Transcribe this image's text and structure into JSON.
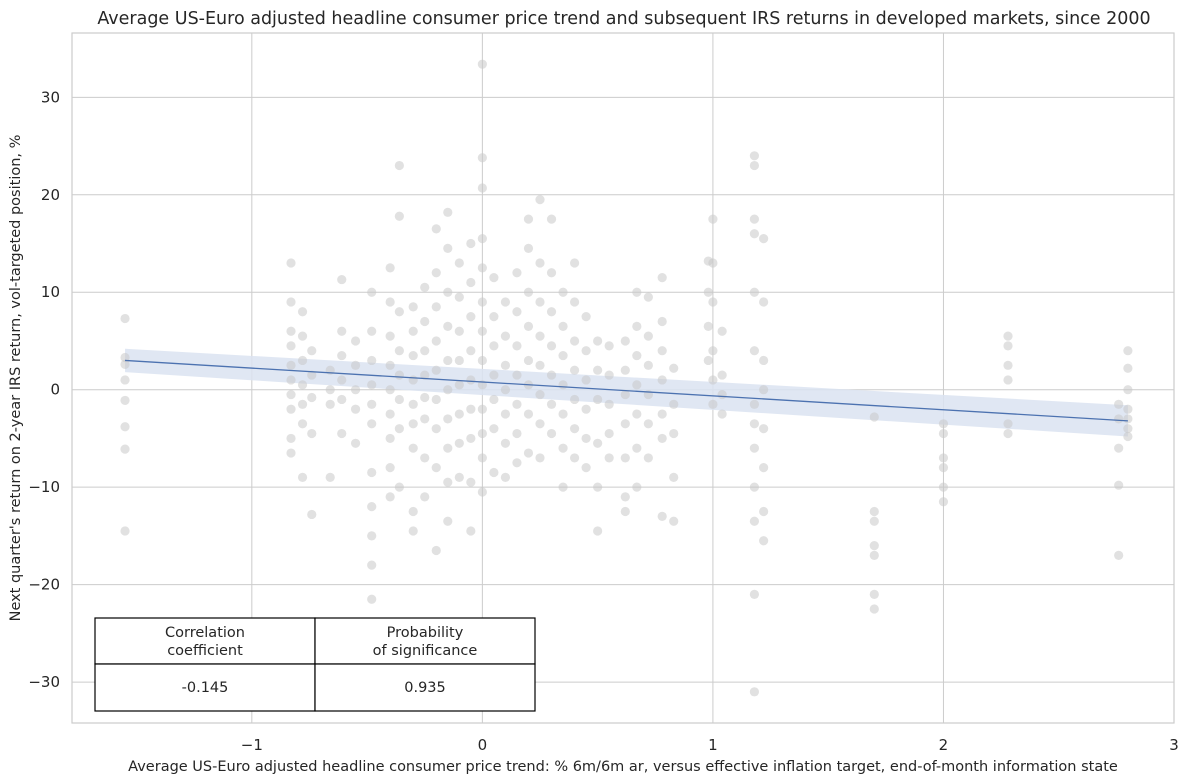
{
  "chart_data": {
    "type": "scatter",
    "title": "Average US-Euro adjusted headline consumer price trend and subsequent IRS returns in developed markets, since 2000",
    "xlabel": "Average US-Euro adjusted headline consumer price trend: % 6m/6m ar, versus effective inflation target, end-of-month information state",
    "ylabel": "Next quarter's return on 2-year IRS return, vol-targeted position, %",
    "xlim": [
      -1.78,
      3.0
    ],
    "ylim": [
      -34.2,
      36.6
    ],
    "x_ticks": [
      -1,
      0,
      1,
      2,
      3
    ],
    "x_tick_labels": [
      "−1",
      "0",
      "1",
      "2",
      "3"
    ],
    "y_ticks": [
      -30,
      -20,
      -10,
      0,
      10,
      20,
      30
    ],
    "y_tick_labels": [
      "−30",
      "−20",
      "−10",
      "0",
      "10",
      "20",
      "30"
    ],
    "grid": true,
    "colors": {
      "points": "#c8c8c8",
      "regression_line": "#4c72b0",
      "confidence_band": "#dbe3f1"
    },
    "regression": {
      "x": [
        -1.55,
        2.8
      ],
      "y": [
        3.0,
        -3.2
      ],
      "band_halfwidth": [
        1.2,
        1.6
      ]
    },
    "points": [
      [
        -1.55,
        7.3
      ],
      [
        -1.55,
        3.3
      ],
      [
        -1.55,
        2.6
      ],
      [
        -1.55,
        1.0
      ],
      [
        -1.55,
        -1.1
      ],
      [
        -1.55,
        -3.8
      ],
      [
        -1.55,
        -6.1
      ],
      [
        -1.55,
        -14.5
      ],
      [
        -0.83,
        13.0
      ],
      [
        -0.83,
        9.0
      ],
      [
        -0.83,
        6.0
      ],
      [
        -0.83,
        4.5
      ],
      [
        -0.83,
        2.5
      ],
      [
        -0.83,
        1.0
      ],
      [
        -0.83,
        -0.5
      ],
      [
        -0.83,
        -2.0
      ],
      [
        -0.83,
        -5.0
      ],
      [
        -0.83,
        -6.5
      ],
      [
        -0.78,
        8.0
      ],
      [
        -0.78,
        5.5
      ],
      [
        -0.78,
        3.0
      ],
      [
        -0.78,
        0.5
      ],
      [
        -0.78,
        -1.5
      ],
      [
        -0.78,
        -3.5
      ],
      [
        -0.78,
        -9.0
      ],
      [
        -0.74,
        4.0
      ],
      [
        -0.74,
        1.5
      ],
      [
        -0.74,
        -0.8
      ],
      [
        -0.74,
        -4.5
      ],
      [
        -0.74,
        -12.8
      ],
      [
        -0.66,
        2.0
      ],
      [
        -0.66,
        0.0
      ],
      [
        -0.66,
        -1.5
      ],
      [
        -0.66,
        -9.0
      ],
      [
        -0.61,
        11.3
      ],
      [
        -0.61,
        6.0
      ],
      [
        -0.61,
        3.5
      ],
      [
        -0.61,
        1.0
      ],
      [
        -0.61,
        -1.0
      ],
      [
        -0.61,
        -4.5
      ],
      [
        -0.55,
        5.0
      ],
      [
        -0.55,
        2.5
      ],
      [
        -0.55,
        0.0
      ],
      [
        -0.55,
        -2.0
      ],
      [
        -0.55,
        -5.5
      ],
      [
        -0.48,
        10.0
      ],
      [
        -0.48,
        6.0
      ],
      [
        -0.48,
        3.0
      ],
      [
        -0.48,
        0.5
      ],
      [
        -0.48,
        -1.5
      ],
      [
        -0.48,
        -3.5
      ],
      [
        -0.48,
        -8.5
      ],
      [
        -0.48,
        -12.0
      ],
      [
        -0.48,
        -15.0
      ],
      [
        -0.48,
        -18.0
      ],
      [
        -0.48,
        -21.5
      ],
      [
        -0.4,
        12.5
      ],
      [
        -0.4,
        9.0
      ],
      [
        -0.4,
        5.5
      ],
      [
        -0.4,
        2.5
      ],
      [
        -0.4,
        0.0
      ],
      [
        -0.4,
        -2.5
      ],
      [
        -0.4,
        -5.0
      ],
      [
        -0.4,
        -8.0
      ],
      [
        -0.4,
        -11.0
      ],
      [
        -0.36,
        23.0
      ],
      [
        -0.36,
        17.8
      ],
      [
        -0.36,
        8.0
      ],
      [
        -0.36,
        4.0
      ],
      [
        -0.36,
        1.5
      ],
      [
        -0.36,
        -1.0
      ],
      [
        -0.36,
        -4.0
      ],
      [
        -0.36,
        -10.0
      ],
      [
        -0.3,
        8.5
      ],
      [
        -0.3,
        6.0
      ],
      [
        -0.3,
        3.5
      ],
      [
        -0.3,
        1.0
      ],
      [
        -0.3,
        -1.5
      ],
      [
        -0.3,
        -3.5
      ],
      [
        -0.3,
        -6.0
      ],
      [
        -0.3,
        -12.5
      ],
      [
        -0.3,
        -14.5
      ],
      [
        -0.25,
        10.5
      ],
      [
        -0.25,
        7.0
      ],
      [
        -0.25,
        4.0
      ],
      [
        -0.25,
        1.5
      ],
      [
        -0.25,
        -0.8
      ],
      [
        -0.25,
        -3.0
      ],
      [
        -0.25,
        -7.0
      ],
      [
        -0.25,
        -11.0
      ],
      [
        -0.2,
        16.5
      ],
      [
        -0.2,
        12.0
      ],
      [
        -0.2,
        8.5
      ],
      [
        -0.2,
        5.0
      ],
      [
        -0.2,
        2.0
      ],
      [
        -0.2,
        -1.0
      ],
      [
        -0.2,
        -4.0
      ],
      [
        -0.2,
        -8.0
      ],
      [
        -0.2,
        -16.5
      ],
      [
        -0.15,
        18.2
      ],
      [
        -0.15,
        14.5
      ],
      [
        -0.15,
        10.0
      ],
      [
        -0.15,
        6.5
      ],
      [
        -0.15,
        3.0
      ],
      [
        -0.15,
        0.0
      ],
      [
        -0.15,
        -3.0
      ],
      [
        -0.15,
        -6.0
      ],
      [
        -0.15,
        -9.5
      ],
      [
        -0.15,
        -13.5
      ],
      [
        -0.1,
        13.0
      ],
      [
        -0.1,
        9.5
      ],
      [
        -0.1,
        6.0
      ],
      [
        -0.1,
        3.0
      ],
      [
        -0.1,
        0.5
      ],
      [
        -0.1,
        -2.5
      ],
      [
        -0.1,
        -5.5
      ],
      [
        -0.1,
        -9.0
      ],
      [
        -0.05,
        15.0
      ],
      [
        -0.05,
        11.0
      ],
      [
        -0.05,
        7.5
      ],
      [
        -0.05,
        4.0
      ],
      [
        -0.05,
        1.0
      ],
      [
        -0.05,
        -2.0
      ],
      [
        -0.05,
        -5.0
      ],
      [
        -0.05,
        -9.5
      ],
      [
        -0.05,
        -14.5
      ],
      [
        0.0,
        33.4
      ],
      [
        0.0,
        23.8
      ],
      [
        0.0,
        20.7
      ],
      [
        0.0,
        15.5
      ],
      [
        0.0,
        12.5
      ],
      [
        0.0,
        9.0
      ],
      [
        0.0,
        6.0
      ],
      [
        0.0,
        3.0
      ],
      [
        0.0,
        0.5
      ],
      [
        0.0,
        -2.0
      ],
      [
        0.0,
        -4.5
      ],
      [
        0.0,
        -7.0
      ],
      [
        0.0,
        -10.5
      ],
      [
        0.05,
        11.5
      ],
      [
        0.05,
        7.5
      ],
      [
        0.05,
        4.5
      ],
      [
        0.05,
        1.5
      ],
      [
        0.05,
        -1.0
      ],
      [
        0.05,
        -4.0
      ],
      [
        0.05,
        -8.5
      ],
      [
        0.1,
        9.0
      ],
      [
        0.1,
        5.5
      ],
      [
        0.1,
        2.5
      ],
      [
        0.1,
        0.0
      ],
      [
        0.1,
        -2.5
      ],
      [
        0.1,
        -5.5
      ],
      [
        0.1,
        -9.0
      ],
      [
        0.15,
        12.0
      ],
      [
        0.15,
        8.0
      ],
      [
        0.15,
        4.5
      ],
      [
        0.15,
        1.5
      ],
      [
        0.15,
        -1.5
      ],
      [
        0.15,
        -4.5
      ],
      [
        0.15,
        -7.5
      ],
      [
        0.2,
        17.5
      ],
      [
        0.2,
        14.5
      ],
      [
        0.2,
        10.0
      ],
      [
        0.2,
        6.5
      ],
      [
        0.2,
        3.0
      ],
      [
        0.2,
        0.5
      ],
      [
        0.2,
        -2.5
      ],
      [
        0.2,
        -6.5
      ],
      [
        0.25,
        19.5
      ],
      [
        0.25,
        13.0
      ],
      [
        0.25,
        9.0
      ],
      [
        0.25,
        5.5
      ],
      [
        0.25,
        2.5
      ],
      [
        0.25,
        -0.5
      ],
      [
        0.25,
        -3.5
      ],
      [
        0.25,
        -7.0
      ],
      [
        0.3,
        17.5
      ],
      [
        0.3,
        12.0
      ],
      [
        0.3,
        8.0
      ],
      [
        0.3,
        4.5
      ],
      [
        0.3,
        1.5
      ],
      [
        0.3,
        -1.5
      ],
      [
        0.3,
        -4.5
      ],
      [
        0.35,
        10.0
      ],
      [
        0.35,
        6.5
      ],
      [
        0.35,
        3.5
      ],
      [
        0.35,
        0.5
      ],
      [
        0.35,
        -2.5
      ],
      [
        0.35,
        -6.0
      ],
      [
        0.35,
        -10.0
      ],
      [
        0.4,
        13.0
      ],
      [
        0.4,
        9.0
      ],
      [
        0.4,
        5.0
      ],
      [
        0.4,
        2.0
      ],
      [
        0.4,
        -1.0
      ],
      [
        0.4,
        -4.0
      ],
      [
        0.4,
        -7.0
      ],
      [
        0.45,
        7.5
      ],
      [
        0.45,
        4.0
      ],
      [
        0.45,
        1.0
      ],
      [
        0.45,
        -2.0
      ],
      [
        0.45,
        -5.0
      ],
      [
        0.45,
        -8.0
      ],
      [
        0.5,
        5.0
      ],
      [
        0.5,
        2.0
      ],
      [
        0.5,
        -1.0
      ],
      [
        0.5,
        -5.5
      ],
      [
        0.5,
        -10.0
      ],
      [
        0.5,
        -14.5
      ],
      [
        0.55,
        4.5
      ],
      [
        0.55,
        1.5
      ],
      [
        0.55,
        -1.5
      ],
      [
        0.55,
        -4.5
      ],
      [
        0.55,
        -7.0
      ],
      [
        0.62,
        5.0
      ],
      [
        0.62,
        2.0
      ],
      [
        0.62,
        -0.5
      ],
      [
        0.62,
        -3.5
      ],
      [
        0.62,
        -7.0
      ],
      [
        0.62,
        -11.0
      ],
      [
        0.62,
        -12.5
      ],
      [
        0.67,
        10.0
      ],
      [
        0.67,
        6.5
      ],
      [
        0.67,
        3.5
      ],
      [
        0.67,
        0.5
      ],
      [
        0.67,
        -2.5
      ],
      [
        0.67,
        -6.0
      ],
      [
        0.67,
        -10.0
      ],
      [
        0.72,
        9.5
      ],
      [
        0.72,
        5.5
      ],
      [
        0.72,
        2.5
      ],
      [
        0.72,
        -0.5
      ],
      [
        0.72,
        -3.5
      ],
      [
        0.72,
        -7.0
      ],
      [
        0.78,
        11.5
      ],
      [
        0.78,
        7.0
      ],
      [
        0.78,
        4.0
      ],
      [
        0.78,
        1.0
      ],
      [
        0.78,
        -2.5
      ],
      [
        0.78,
        -5.0
      ],
      [
        0.78,
        -13.0
      ],
      [
        0.83,
        2.2
      ],
      [
        0.83,
        -1.5
      ],
      [
        0.83,
        -4.5
      ],
      [
        0.83,
        -9.0
      ],
      [
        0.83,
        -13.5
      ],
      [
        0.98,
        13.2
      ],
      [
        0.98,
        10.0
      ],
      [
        0.98,
        6.5
      ],
      [
        0.98,
        3.0
      ],
      [
        1.0,
        17.5
      ],
      [
        1.0,
        13.0
      ],
      [
        1.0,
        9.0
      ],
      [
        1.0,
        4.0
      ],
      [
        1.0,
        1.0
      ],
      [
        1.0,
        -1.5
      ],
      [
        1.04,
        6.0
      ],
      [
        1.04,
        1.5
      ],
      [
        1.04,
        -0.5
      ],
      [
        1.04,
        -2.5
      ],
      [
        1.18,
        24.0
      ],
      [
        1.18,
        23.0
      ],
      [
        1.18,
        17.5
      ],
      [
        1.18,
        16.0
      ],
      [
        1.18,
        10.0
      ],
      [
        1.18,
        4.0
      ],
      [
        1.18,
        -1.5
      ],
      [
        1.18,
        -3.5
      ],
      [
        1.18,
        -6.0
      ],
      [
        1.18,
        -10.0
      ],
      [
        1.18,
        -13.5
      ],
      [
        1.18,
        -21.0
      ],
      [
        1.18,
        -31.0
      ],
      [
        1.22,
        15.5
      ],
      [
        1.22,
        9.0
      ],
      [
        1.22,
        3.0
      ],
      [
        1.22,
        0.0
      ],
      [
        1.22,
        -4.0
      ],
      [
        1.22,
        -8.0
      ],
      [
        1.22,
        -12.5
      ],
      [
        1.22,
        -15.5
      ],
      [
        1.7,
        -2.8
      ],
      [
        1.7,
        -12.5
      ],
      [
        1.7,
        -13.5
      ],
      [
        1.7,
        -16.0
      ],
      [
        1.7,
        -17.0
      ],
      [
        1.7,
        -21.0
      ],
      [
        1.7,
        -22.5
      ],
      [
        2.0,
        -3.5
      ],
      [
        2.0,
        -4.5
      ],
      [
        2.0,
        -7.0
      ],
      [
        2.0,
        -8.0
      ],
      [
        2.0,
        -10.0
      ],
      [
        2.0,
        -11.5
      ],
      [
        2.28,
        5.5
      ],
      [
        2.28,
        4.5
      ],
      [
        2.28,
        2.5
      ],
      [
        2.28,
        1.0
      ],
      [
        2.28,
        -3.5
      ],
      [
        2.28,
        -4.5
      ],
      [
        2.76,
        -1.5
      ],
      [
        2.76,
        -3.0
      ],
      [
        2.76,
        -6.0
      ],
      [
        2.76,
        -9.8
      ],
      [
        2.76,
        -17.0
      ],
      [
        2.8,
        4.0
      ],
      [
        2.8,
        2.2
      ],
      [
        2.8,
        0.0
      ],
      [
        2.8,
        -2.0
      ],
      [
        2.8,
        -3.0
      ],
      [
        2.8,
        -4.0
      ],
      [
        2.8,
        -4.8
      ]
    ],
    "table": {
      "headers": [
        "Correlation coefficient",
        "Probability of significance"
      ],
      "header_lines": [
        [
          "Correlation",
          "coefficient"
        ],
        [
          "Probability",
          "of significance"
        ]
      ],
      "values": [
        "-0.145",
        "0.935"
      ]
    }
  }
}
